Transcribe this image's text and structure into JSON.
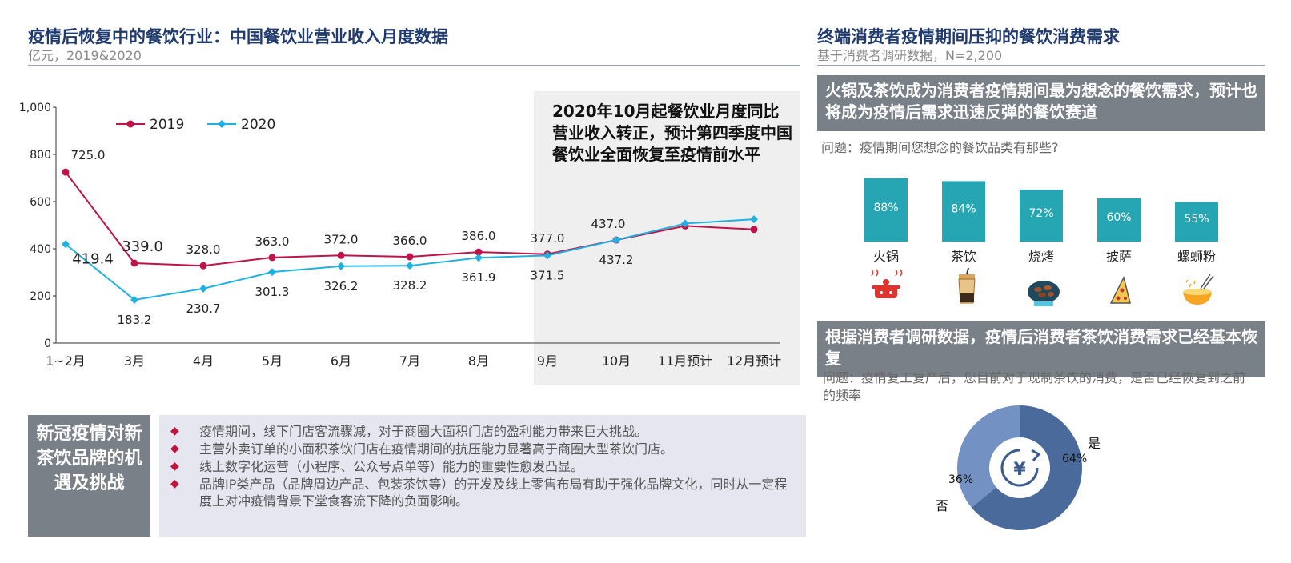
{
  "left": {
    "title": "疫情后恢复中的餐饮行业：中国餐饮业营业收入月度数据",
    "subtitle": "亿元，2019&2020",
    "callout": "2020年10月起餐饮业月度同比营业收入转正，预计第四季度中国餐饮业全面恢复至疫情前水平",
    "box_title": "新冠疫情对新茶饮品牌的机遇及挑战",
    "bullets": [
      "疫情期间，线下门店客流骤减，对于商圈大面积门店的盈利能力带来巨大挑战。",
      "主营外卖订单的小面积茶饮门店在疫情期间的抗压能力显著高于商圈大型茶饮门店。",
      "线上数字化运营（小程序、公众号点单等）能力的重要性愈发凸显。",
      "品牌IP类产品（品牌周边产品、包装茶饮等）的开发及线上零售布局有助于强化品牌文化，同时从一定程度上对冲疫情背景下堂食客流下降的负面影响。"
    ]
  },
  "right": {
    "title": "终端消费者疫情期间压抑的餐饮消费需求",
    "subtitle": "基于消费者调研数据，N=2,200",
    "banner1": "火锅及茶饮成为消费者疫情期间最为想念的餐饮需求，预计也将成为疫情后需求迅速反弹的餐饮赛道",
    "question1": "问题：疫情期间您想念的餐饮品类有那些?",
    "banner2": "根据消费者调研数据，疫情后消费者茶饮消费需求已经基本恢复",
    "question2": "问题：疫情复工复产后，您目前对于现制茶饮的消费，是否已经恢复到之前的频率"
  },
  "colors": {
    "series_2019": "#c0134a",
    "series_2020": "#1fb1e0",
    "bar": "#26a5b3",
    "donut_yes": "#4a6a9c",
    "donut_no": "#7391c2"
  },
  "chart_data": [
    {
      "type": "line",
      "categories": [
        "1~2月",
        "3月",
        "4月",
        "5月",
        "6月",
        "7月",
        "8月",
        "9月",
        "10月",
        "11月预计",
        "12月预计"
      ],
      "series": [
        {
          "name": "2019",
          "values": [
            725.0,
            339.0,
            328.0,
            363.0,
            372.0,
            366.0,
            386.0,
            377.0,
            437.0,
            497,
            482
          ],
          "labels": [
            "725.0",
            "339.0",
            "328.0",
            "363.0",
            "372.0",
            "366.0",
            "386.0",
            "377.0",
            "437.0",
            "",
            ""
          ]
        },
        {
          "name": "2020",
          "values": [
            419.4,
            183.2,
            230.7,
            301.3,
            326.2,
            328.2,
            361.9,
            371.5,
            437.2,
            507,
            525
          ],
          "labels": [
            "419.4",
            "183.2",
            "230.7",
            "301.3",
            "326.2",
            "328.2",
            "361.9",
            "371.5",
            "437.2",
            "",
            ""
          ]
        }
      ],
      "yticks": [
        "0",
        "200",
        "400",
        "600",
        "800",
        "1,000"
      ],
      "ylim": [
        0,
        1000
      ],
      "legend": "top-left"
    },
    {
      "type": "bar",
      "categories": [
        "火锅",
        "茶饮",
        "烧烤",
        "披萨",
        "螺蛳粉"
      ],
      "values": [
        88,
        84,
        72,
        60,
        55
      ],
      "labels": [
        "88%",
        "84%",
        "72%",
        "60%",
        "55%"
      ]
    },
    {
      "type": "pie",
      "categories": [
        "是",
        "否"
      ],
      "values": [
        64,
        36
      ],
      "labels": [
        "64%",
        "36%"
      ]
    }
  ]
}
